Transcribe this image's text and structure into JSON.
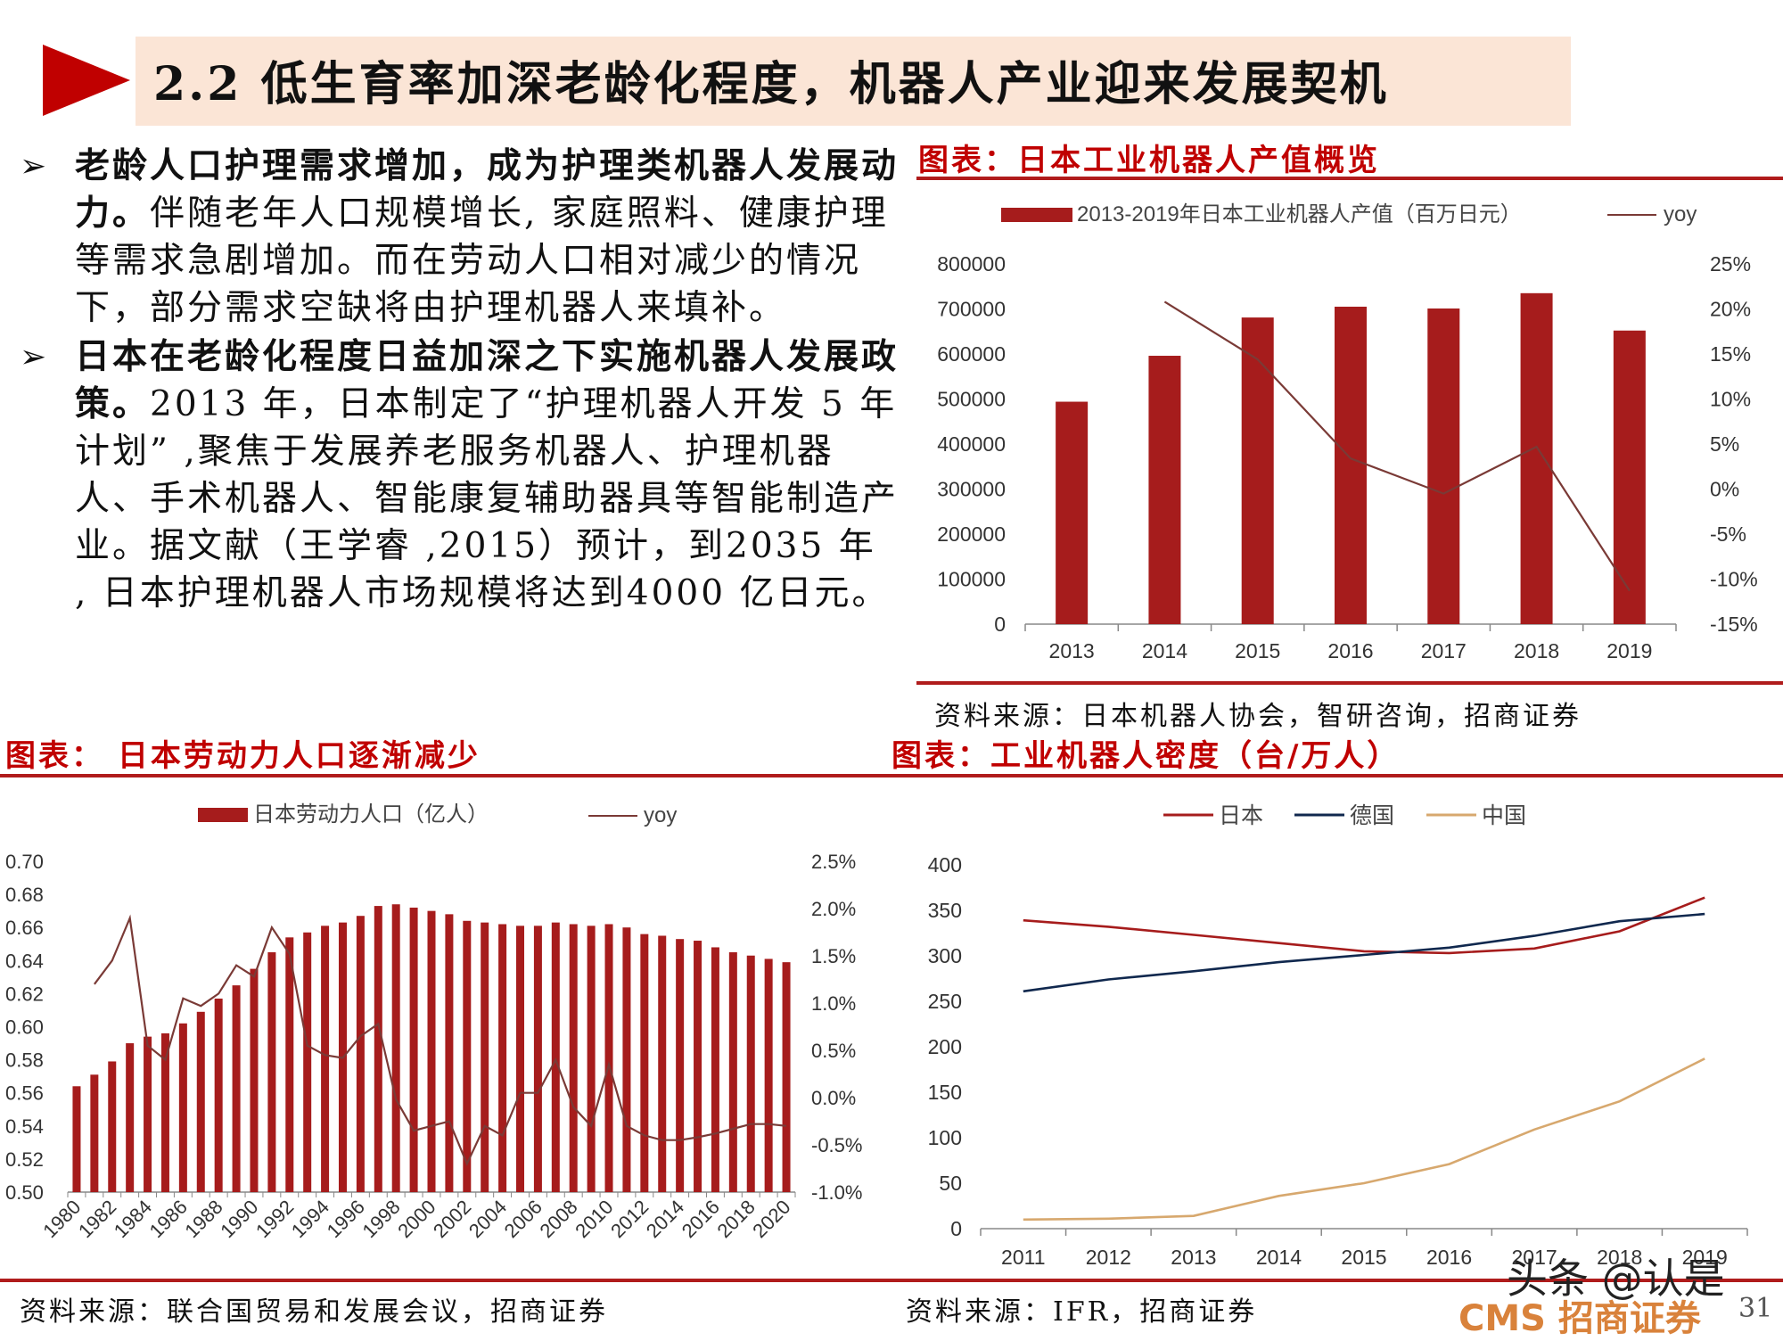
{
  "header": {
    "title": "2.2 低生育率加深老龄化程度，机器人产业迎来发展契机"
  },
  "bullets": [
    {
      "bold": "老龄人口护理需求增加，成为护理类机器人发展动力。",
      "text": "伴随老年人口规模增长, 家庭照料、健康护理等需求急剧增加。而在劳动人口相对减少的情况下，部分需求空缺将由护理机器人来填补。"
    },
    {
      "bold": "日本在老龄化程度日益加深之下实施机器人发展政策。",
      "text": "2013 年，日本制定了“护理机器人开发 5 年计划” ,聚焦于发展养老服务机器人、护理机器人、手术机器人、智能康复辅助器具等智能制造产业。据文献（王学睿 ,2015）预计，到2035 年 , 日本护理机器人市场规模将达到4000 亿日元。"
    }
  ],
  "figures": {
    "fig1": {
      "title": "图表：日本工业机器人产值概览",
      "source": "资料来源：日本机器人协会，智研咨询，招商证券"
    },
    "fig2": {
      "title": "图表： 日本劳动力人口逐渐减少",
      "source": "资料来源：联合国贸易和发展会议，招商证券"
    },
    "fig3": {
      "title": "图表：工业机器人密度（台/万人）",
      "source": "资料来源：IFR，招商证券"
    }
  },
  "chart_data": [
    {
      "id": "robot-output",
      "type": "bar",
      "categories": [
        "2013",
        "2014",
        "2015",
        "2016",
        "2017",
        "2018",
        "2019"
      ],
      "series": [
        {
          "name": "2013-2019年日本工业机器人产值（百万日元）",
          "axis": "left",
          "color": "#a61c1c",
          "values": [
            494000,
            596000,
            681000,
            705000,
            701000,
            735000,
            652000
          ]
        },
        {
          "name": "yoy",
          "axis": "right",
          "type": "line",
          "color": "#7a3a36",
          "values": [
            null,
            20.8,
            14.4,
            3.4,
            -0.5,
            4.7,
            -11.3
          ]
        }
      ],
      "yleft": {
        "min": 0,
        "max": 800000,
        "ticks": [
          "0",
          "100000",
          "200000",
          "300000",
          "400000",
          "500000",
          "600000",
          "700000",
          "800000"
        ]
      },
      "yright": {
        "min": -15,
        "max": 25,
        "ticks": [
          "-15%",
          "-10%",
          "-5%",
          "0%",
          "5%",
          "10%",
          "15%",
          "20%",
          "25%"
        ]
      },
      "legend": "top"
    },
    {
      "id": "labor-population",
      "type": "bar",
      "categories": [
        "1980",
        "1981",
        "1982",
        "1983",
        "1984",
        "1985",
        "1986",
        "1987",
        "1988",
        "1989",
        "1990",
        "1991",
        "1992",
        "1993",
        "1994",
        "1995",
        "1996",
        "1997",
        "1998",
        "1999",
        "2000",
        "2001",
        "2002",
        "2003",
        "2004",
        "2005",
        "2006",
        "2007",
        "2008",
        "2009",
        "2010",
        "2011",
        "2012",
        "2013",
        "2014",
        "2015",
        "2016",
        "2017",
        "2018",
        "2019",
        "2020"
      ],
      "xticks": [
        "1980",
        "1982",
        "1984",
        "1986",
        "1988",
        "1990",
        "1992",
        "1994",
        "1996",
        "1998",
        "2000",
        "2002",
        "2004",
        "2006",
        "2008",
        "2010",
        "2012",
        "2014",
        "2016",
        "2018",
        "2020"
      ],
      "series": [
        {
          "name": "日本劳动力人口（亿人）",
          "axis": "left",
          "color": "#a61c1c",
          "values": [
            0.564,
            0.571,
            0.579,
            0.59,
            0.594,
            0.596,
            0.602,
            0.609,
            0.617,
            0.625,
            0.635,
            0.645,
            0.654,
            0.657,
            0.661,
            0.663,
            0.667,
            0.673,
            0.674,
            0.672,
            0.67,
            0.668,
            0.664,
            0.663,
            0.662,
            0.661,
            0.661,
            0.663,
            0.662,
            0.661,
            0.662,
            0.66,
            0.656,
            0.655,
            0.653,
            0.652,
            0.648,
            0.645,
            0.643,
            0.641,
            0.639
          ]
        },
        {
          "name": "yoy",
          "axis": "right",
          "type": "line",
          "color": "#7a3a36",
          "values": [
            null,
            1.2,
            1.45,
            1.9,
            0.55,
            0.4,
            1.05,
            0.97,
            1.1,
            1.4,
            1.28,
            1.8,
            1.52,
            0.55,
            0.45,
            0.42,
            0.65,
            0.78,
            -0.02,
            -0.35,
            -0.3,
            -0.25,
            -0.7,
            -0.3,
            -0.4,
            0.05,
            0.05,
            0.4,
            -0.1,
            -0.3,
            0.35,
            -0.3,
            -0.4,
            -0.45,
            -0.45,
            -0.42,
            -0.38,
            -0.33,
            -0.28,
            -0.28,
            -0.3
          ]
        }
      ],
      "yleft": {
        "min": 0.5,
        "max": 0.7,
        "ticks": [
          "0.50",
          "0.52",
          "0.54",
          "0.56",
          "0.58",
          "0.60",
          "0.62",
          "0.64",
          "0.66",
          "0.68",
          "0.70"
        ]
      },
      "yright": {
        "min": -1.0,
        "max": 2.5,
        "ticks": [
          "-1.0%",
          "-0.5%",
          "0.0%",
          "0.5%",
          "1.0%",
          "1.5%",
          "2.0%",
          "2.5%"
        ]
      },
      "legend": "top"
    },
    {
      "id": "robot-density",
      "type": "line",
      "categories": [
        "2011",
        "2012",
        "2013",
        "2014",
        "2015",
        "2016",
        "2017",
        "2018",
        "2019"
      ],
      "series": [
        {
          "name": "日本",
          "color": "#a61c1c",
          "values": [
            339,
            332,
            323,
            314,
            305,
            303,
            308,
            327,
            364
          ]
        },
        {
          "name": "德国",
          "color": "#10284e",
          "values": [
            261,
            274,
            283,
            293,
            301,
            309,
            322,
            338,
            346
          ]
        },
        {
          "name": "中国",
          "color": "#d7a86e",
          "values": [
            10,
            11,
            14,
            36,
            50,
            71,
            109,
            140,
            187
          ]
        }
      ],
      "ylim": [
        0,
        400
      ],
      "yticks": [
        "0",
        "50",
        "100",
        "150",
        "200",
        "250",
        "300",
        "350",
        "400"
      ],
      "legend": "top"
    }
  ],
  "footer": {
    "watermark": "头条 @认是",
    "logo": "CMS 招商证券",
    "page": "31"
  }
}
